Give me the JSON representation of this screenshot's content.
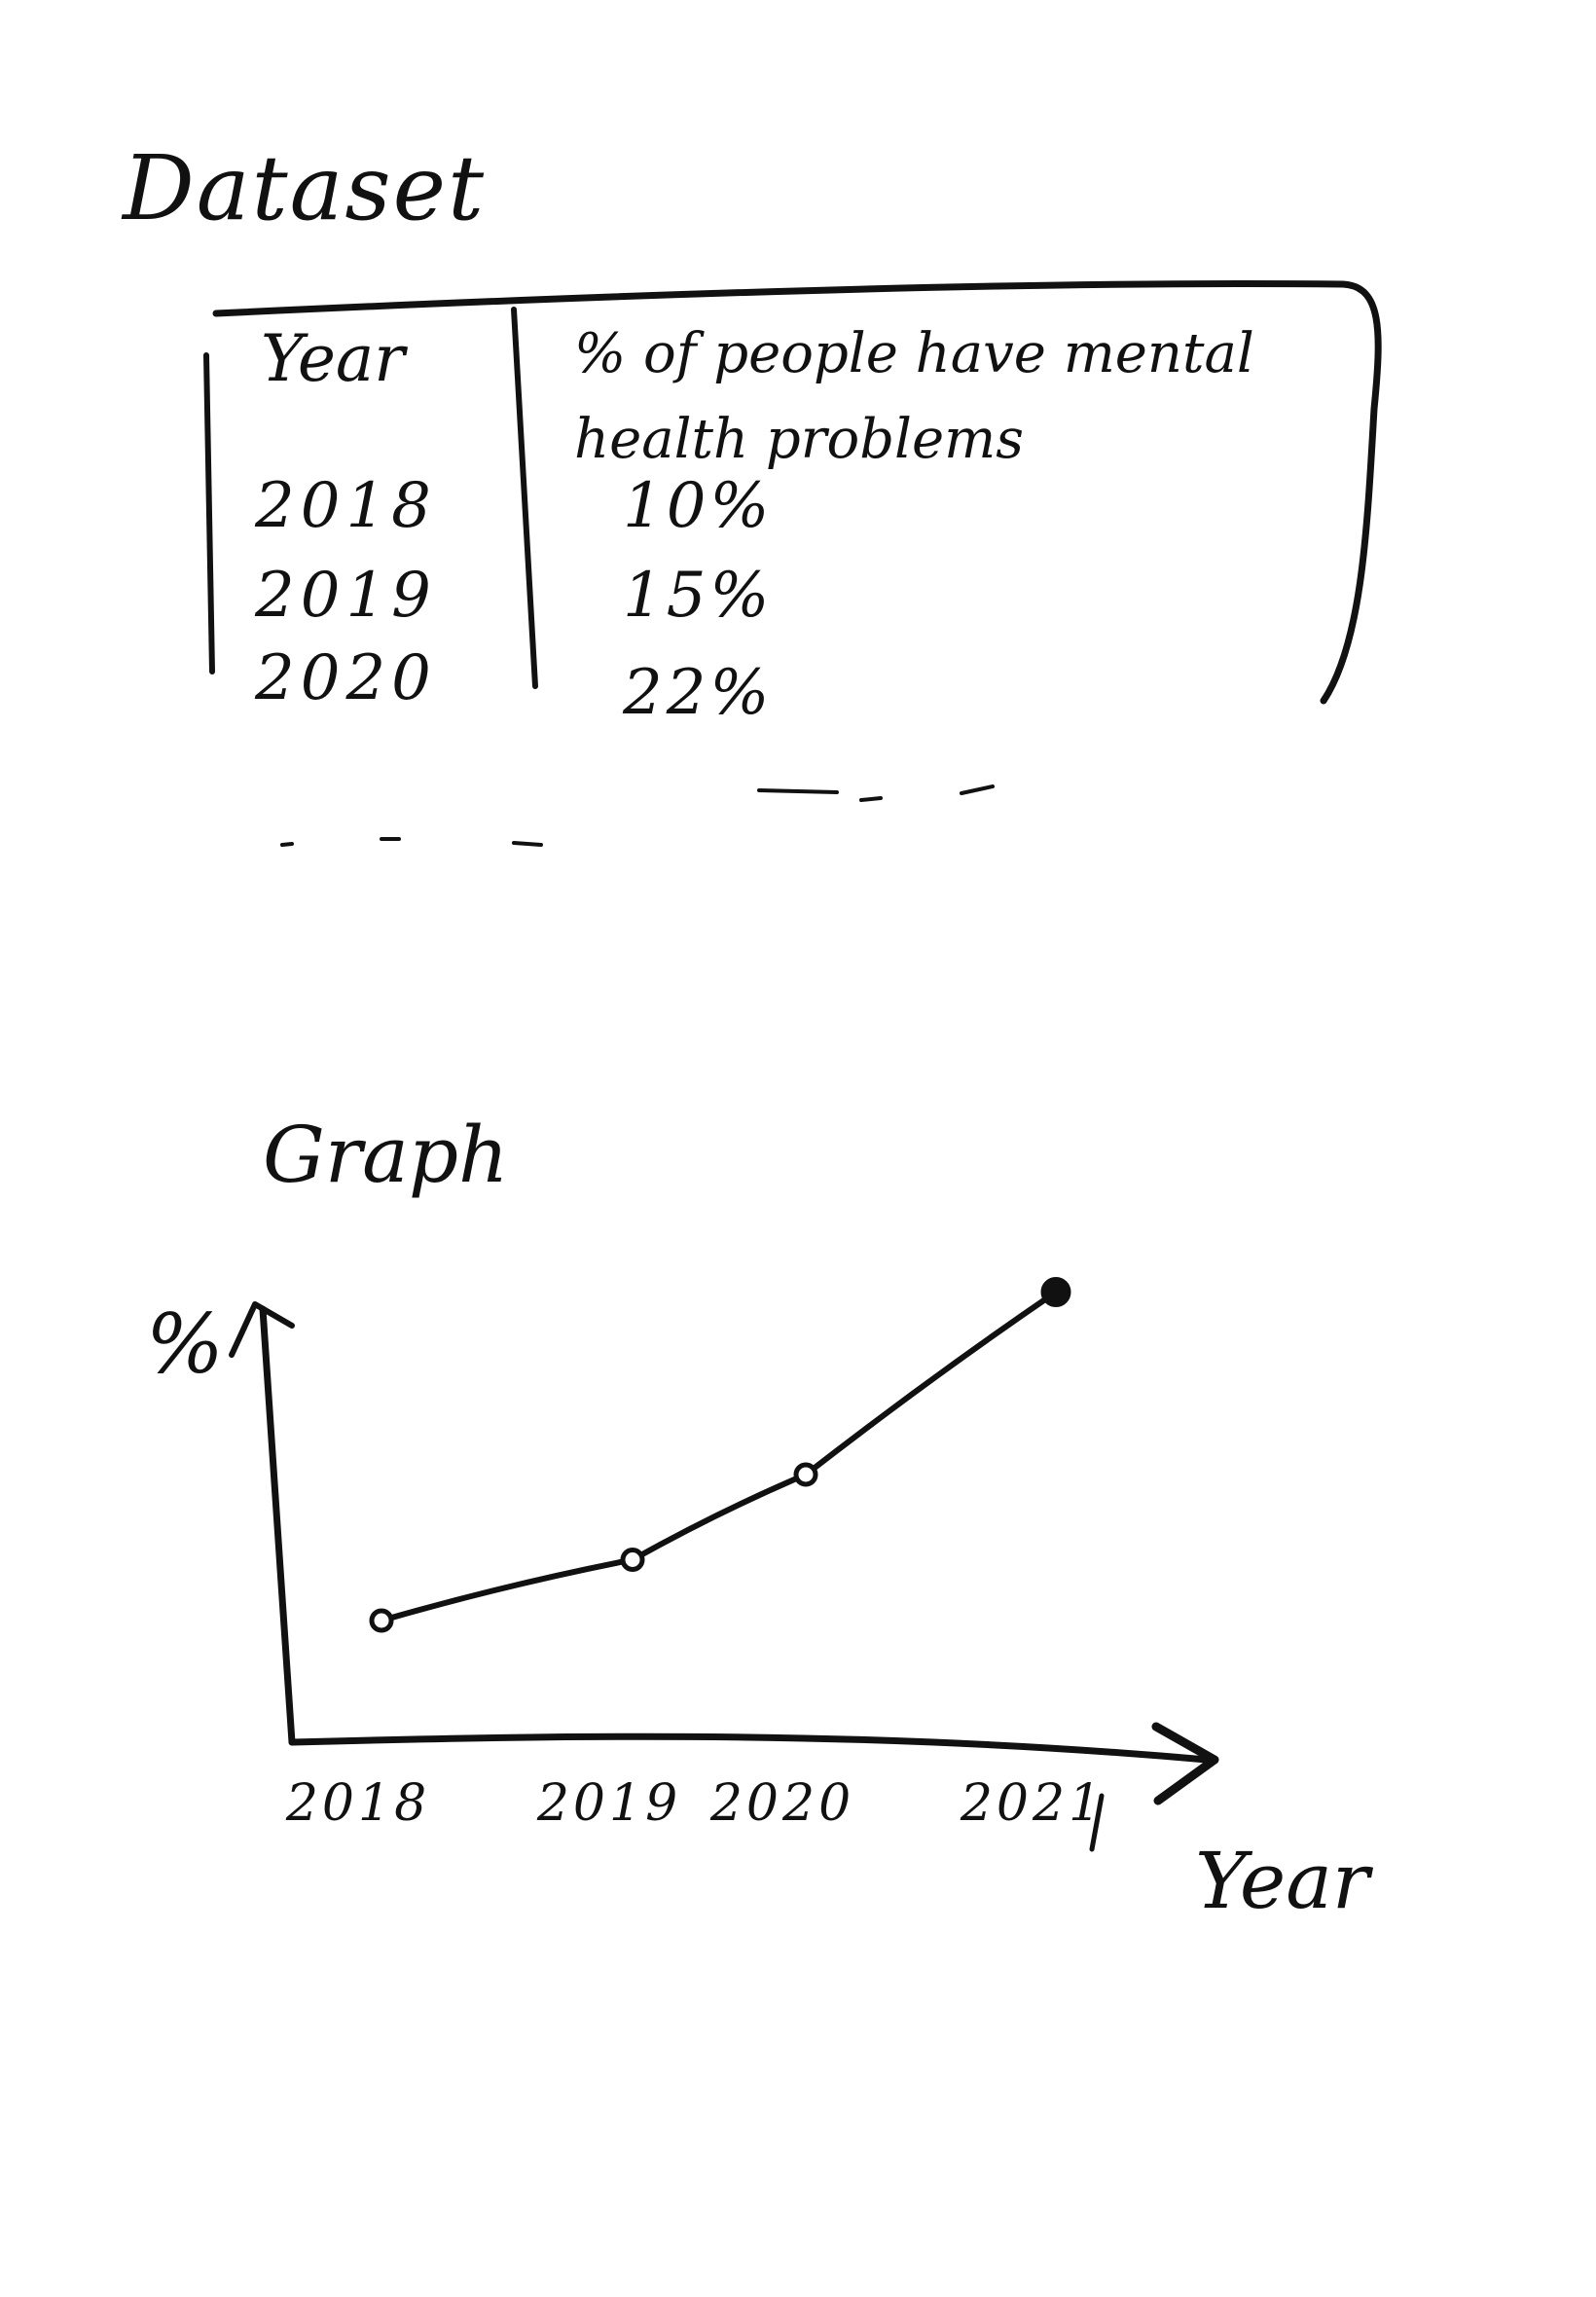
{
  "dataset": {
    "title": "Dataset",
    "columns": [
      "Year",
      "% of people have mental health problems"
    ],
    "rows": [
      {
        "year": "2018",
        "value": "10%"
      },
      {
        "year": "2019",
        "value": "15%"
      },
      {
        "year": "2020",
        "value": "22%"
      }
    ]
  },
  "graph": {
    "title": "Graph"
  },
  "chart_data": {
    "type": "line",
    "title": "Graph",
    "xlabel": "Year",
    "ylabel": "%",
    "categories": [
      "2018",
      "2019",
      "2020",
      "2021"
    ],
    "series": [
      {
        "values": [
          10,
          15,
          22,
          37
        ]
      }
    ],
    "ylim": [
      0,
      48
    ],
    "grid": false,
    "legend": "none"
  }
}
